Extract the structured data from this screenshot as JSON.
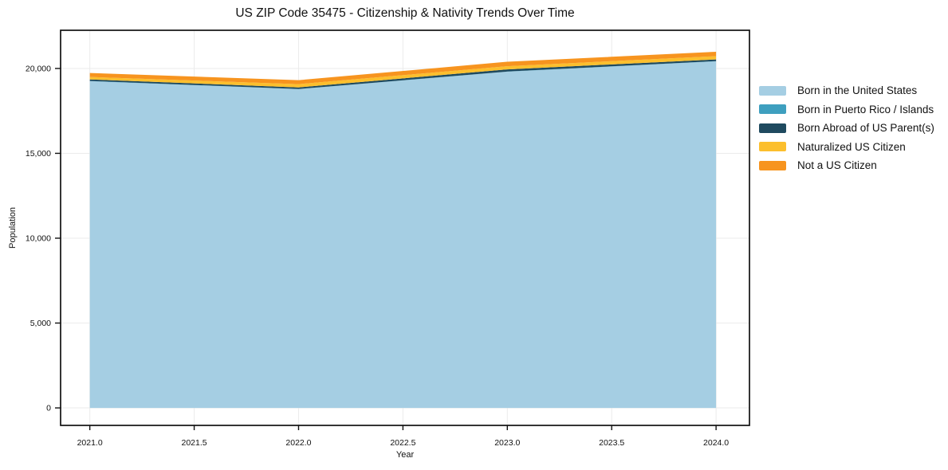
{
  "title": "US ZIP Code 35475 - Citizenship & Nativity Trends Over Time",
  "chart_data": {
    "type": "area",
    "stacked": true,
    "title": "US ZIP Code 35475 - Citizenship & Nativity Trends Over Time",
    "xlabel": "Year",
    "ylabel": "Population",
    "x": [
      2021,
      2022,
      2023,
      2024
    ],
    "series": [
      {
        "name": "Born in the United States",
        "color": "#a5cee3",
        "values": [
          19250,
          18780,
          19810,
          20420
        ]
      },
      {
        "name": "Born in Puerto Rico / Islands",
        "color": "#3e9fbf",
        "values": [
          15,
          10,
          10,
          15
        ]
      },
      {
        "name": "Born Abroad of US Parent(s)",
        "color": "#1f4a5f",
        "values": [
          90,
          95,
          125,
          95
        ]
      },
      {
        "name": "Naturalized US Citizen",
        "color": "#fcbf2d",
        "values": [
          145,
          190,
          190,
          195
        ]
      },
      {
        "name": "Not a US Citizen",
        "color": "#f7941f",
        "values": [
          235,
          235,
          260,
          260
        ]
      }
    ],
    "x_ticks": [
      {
        "value": 2021.0,
        "label": "2021.0"
      },
      {
        "value": 2021.5,
        "label": "2021.5"
      },
      {
        "value": 2022.0,
        "label": "2022.0"
      },
      {
        "value": 2022.5,
        "label": "2022.5"
      },
      {
        "value": 2023.0,
        "label": "2023.0"
      },
      {
        "value": 2023.5,
        "label": "2023.5"
      },
      {
        "value": 2024.0,
        "label": "2024.0"
      }
    ],
    "y_ticks": [
      {
        "value": 0,
        "label": "0"
      },
      {
        "value": 5000,
        "label": "5,000"
      },
      {
        "value": 10000,
        "label": "10,000"
      },
      {
        "value": 15000,
        "label": "15,000"
      },
      {
        "value": 20000,
        "label": "20,000"
      }
    ],
    "xlim": [
      2020.86,
      2024.16
    ],
    "ylim": [
      -1030,
      22250
    ],
    "grid": true,
    "legend_position": "right",
    "colors": {
      "grid": "#ebebeb",
      "frame": "#111111",
      "text": "#111111"
    }
  }
}
